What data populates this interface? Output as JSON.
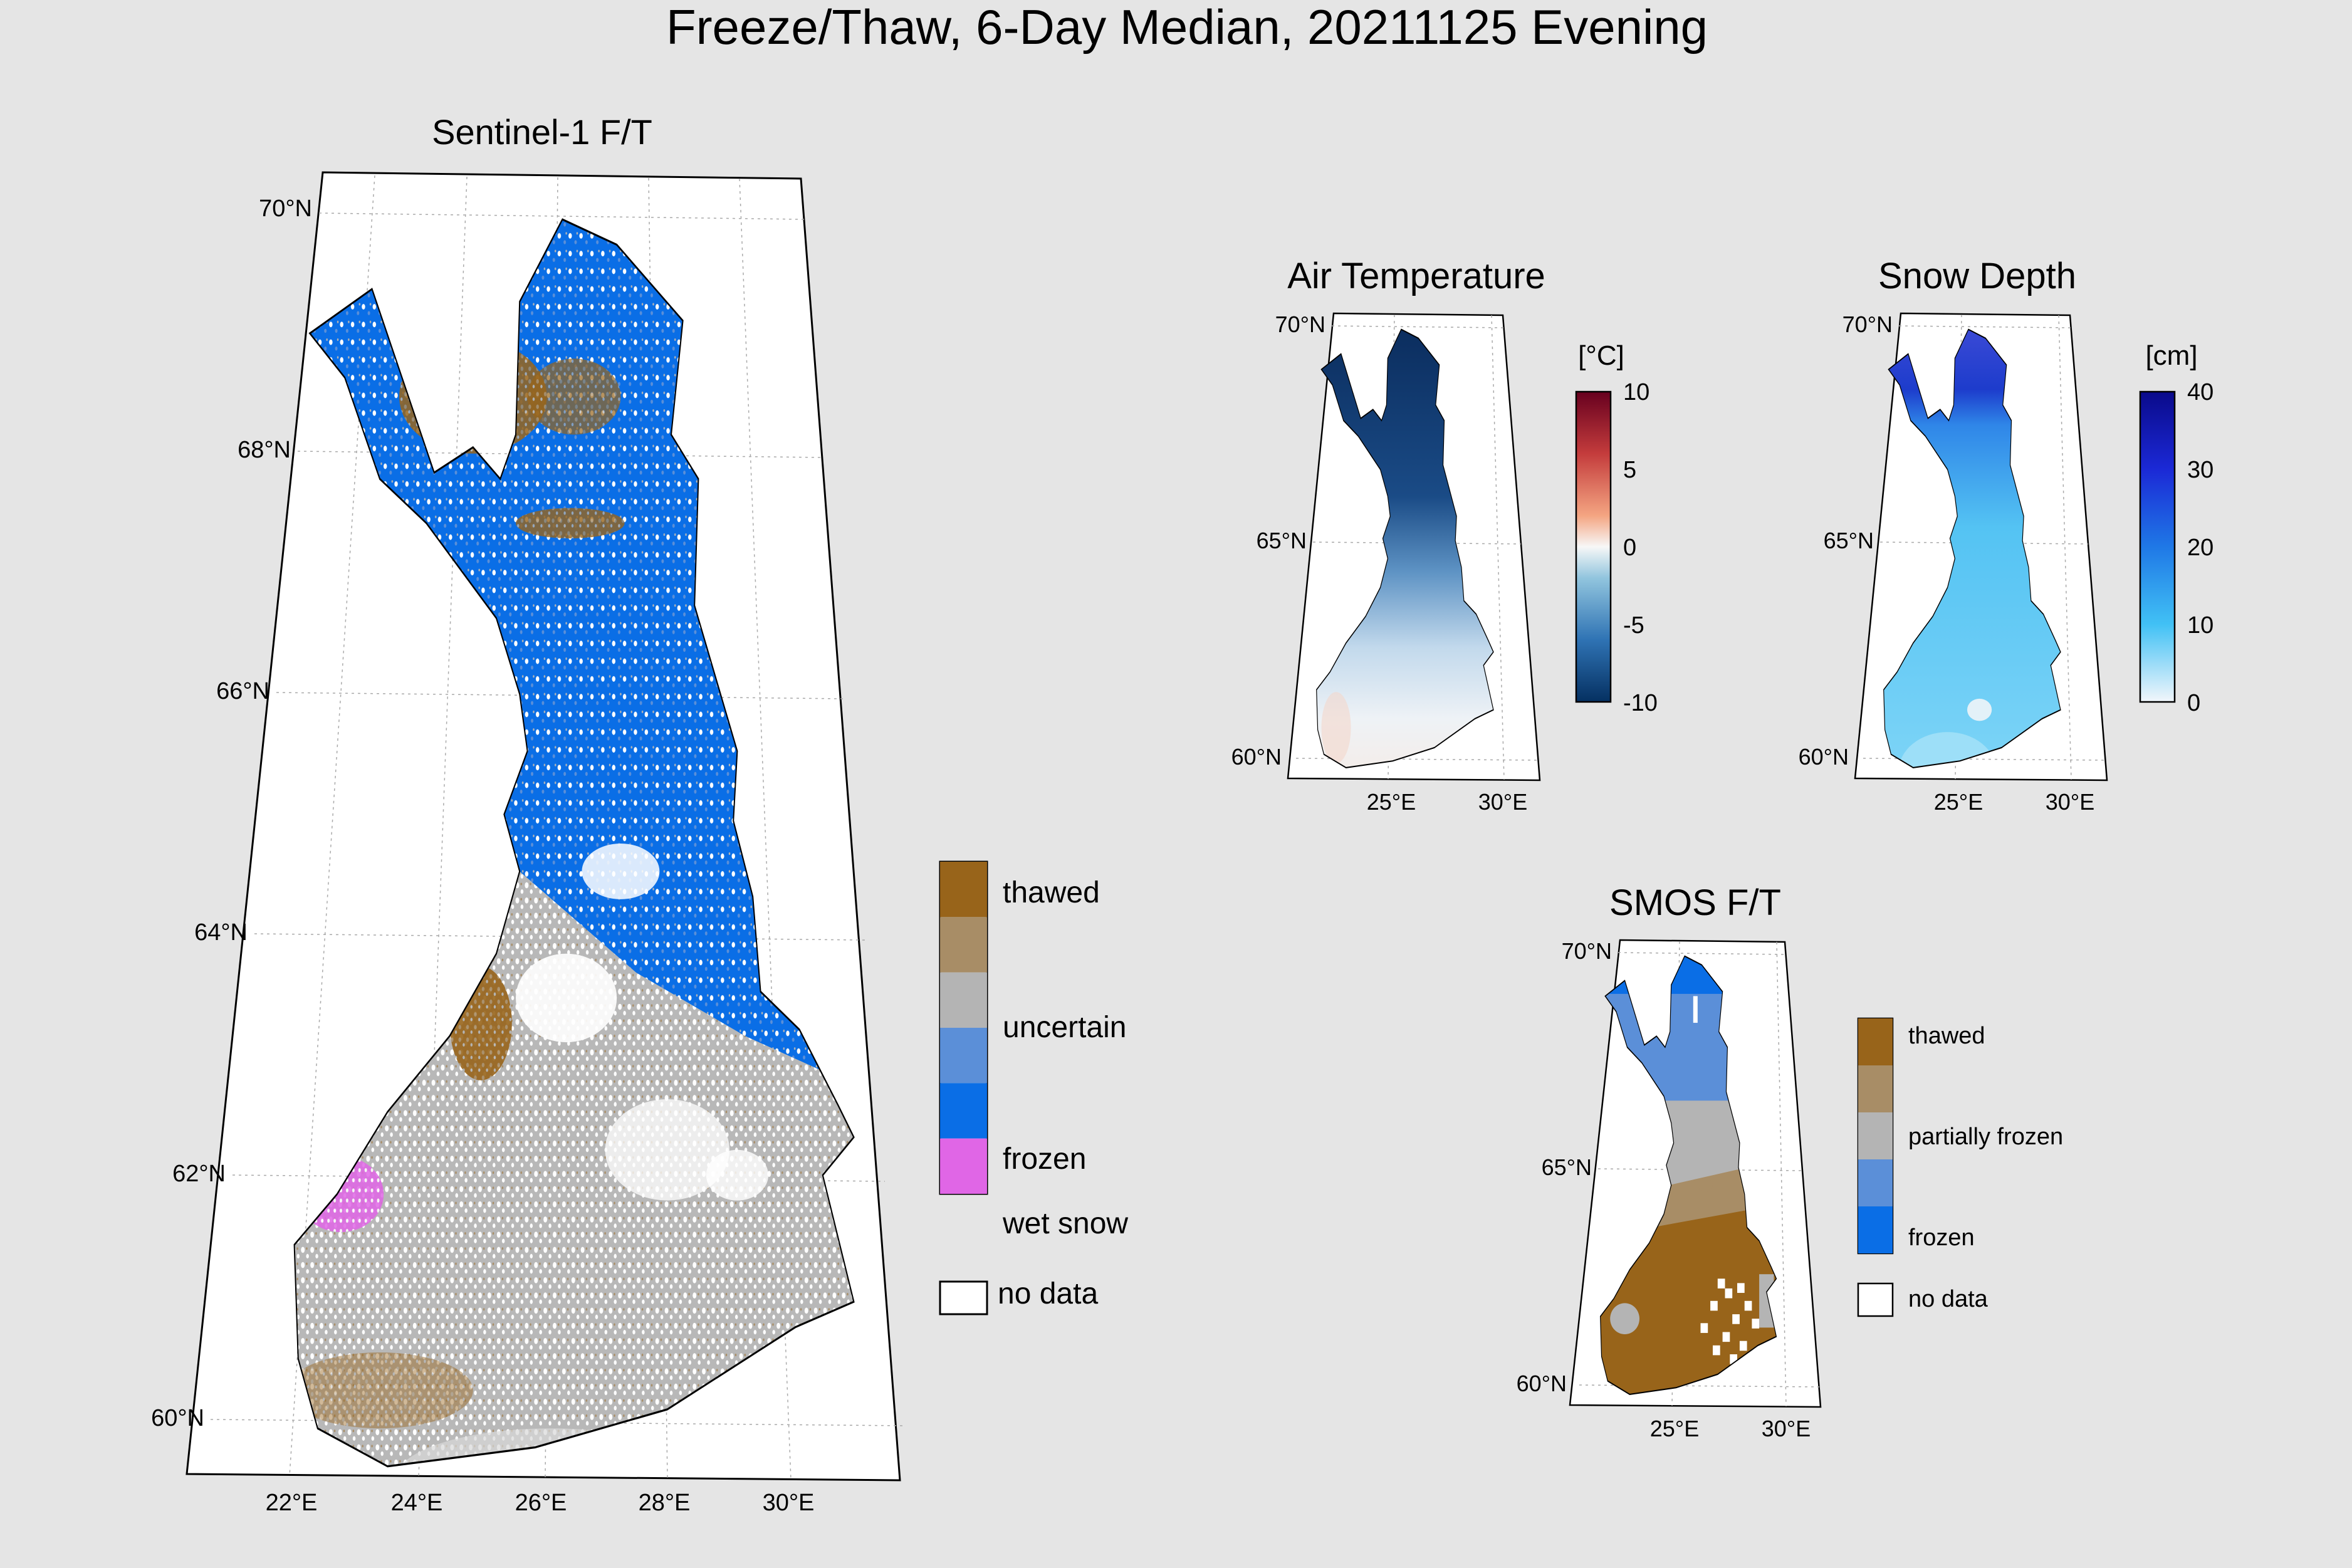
{
  "figure": {
    "title": "Freeze/Thaw, 6-Day Median, 20211125 Evening"
  },
  "panels": {
    "sentinel": {
      "title": "Sentinel-1 F/T",
      "lat_labels": [
        "70°N",
        "68°N",
        "66°N",
        "64°N",
        "62°N",
        "60°N"
      ],
      "lon_labels": [
        "22°E",
        "24°E",
        "26°E",
        "28°E",
        "30°E"
      ]
    },
    "air_temperature": {
      "title": "Air Temperature",
      "unit": "[°C]",
      "lat_labels": [
        "70°N",
        "65°N",
        "60°N"
      ],
      "lon_labels": [
        "25°E",
        "30°E"
      ],
      "colorbar_ticks": [
        "10",
        "5",
        "0",
        "-5",
        "-10"
      ],
      "colorbar_range": [
        -10,
        10
      ]
    },
    "snow_depth": {
      "title": "Snow Depth",
      "unit": "[cm]",
      "lat_labels": [
        "70°N",
        "65°N",
        "60°N"
      ],
      "lon_labels": [
        "25°E",
        "30°E"
      ],
      "colorbar_ticks": [
        "40",
        "30",
        "20",
        "10",
        "0"
      ],
      "colorbar_range": [
        0,
        40
      ]
    },
    "smos": {
      "title": "SMOS F/T",
      "lat_labels": [
        "70°N",
        "65°N",
        "60°N"
      ],
      "lon_labels": [
        "25°E",
        "30°E"
      ]
    }
  },
  "legends": {
    "sentinel": {
      "labels": [
        "thawed",
        "uncertain",
        "frozen",
        "wet snow",
        "no data"
      ],
      "colors": [
        "#98641a",
        "#a88d66",
        "#b4b4b4",
        "#5b8fd8",
        "#0a6ee6",
        "#e066e6",
        "#ffffff"
      ]
    },
    "smos": {
      "labels": [
        "thawed",
        "partially frozen",
        "frozen",
        "no data"
      ],
      "colors": [
        "#98641a",
        "#a88d66",
        "#b4b4b4",
        "#5b8fd8",
        "#0a6ee6",
        "#ffffff"
      ]
    }
  },
  "colors": {
    "background": "#e5e5e5",
    "thawed": "#98641a",
    "uncertain": "#b4b4b4",
    "frozen": "#0a6ee6",
    "wet_snow": "#e066e6"
  }
}
